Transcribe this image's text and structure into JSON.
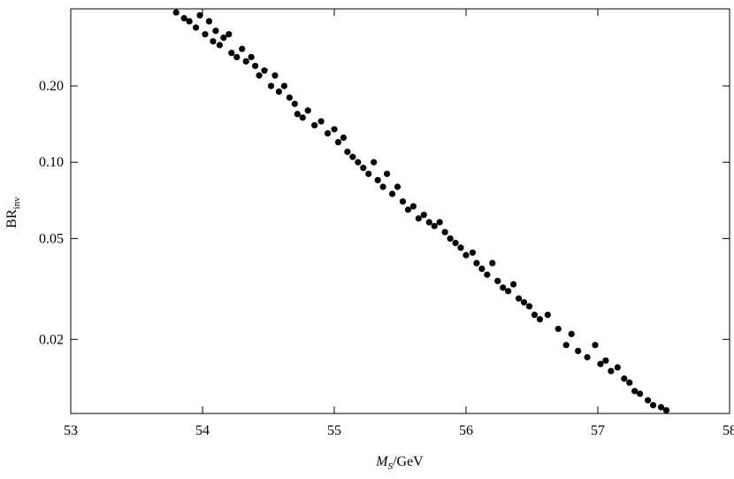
{
  "chart_data": {
    "type": "scatter",
    "yscale": "log",
    "color": "#000000",
    "xlabel": "M",
    "xlabel_sub": "S",
    "xlabel_unit": "/GeV",
    "ylabel": "BR",
    "ylabel_sub": "inv",
    "xlim": [
      53,
      58
    ],
    "xticks": [
      53,
      54,
      55,
      56,
      57,
      58
    ],
    "ylim": [
      0.0102,
      0.403
    ],
    "yticks": [
      {
        "value": 0.2,
        "label": "0.20"
      },
      {
        "value": 0.1,
        "label": "0.10"
      },
      0.05,
      0.02
    ],
    "x": [
      53.8,
      53.86,
      53.9,
      53.95,
      53.98,
      54.02,
      54.05,
      54.08,
      54.1,
      54.13,
      54.16,
      54.2,
      54.22,
      54.26,
      54.3,
      54.33,
      54.37,
      54.4,
      54.43,
      54.47,
      54.52,
      54.55,
      54.58,
      54.62,
      54.66,
      54.7,
      54.72,
      54.76,
      54.8,
      54.85,
      54.9,
      54.95,
      55.0,
      55.03,
      55.07,
      55.1,
      55.14,
      55.18,
      55.22,
      55.26,
      55.3,
      55.33,
      55.37,
      55.4,
      55.44,
      55.48,
      55.52,
      55.56,
      55.6,
      55.64,
      55.68,
      55.72,
      55.76,
      55.8,
      55.84,
      55.88,
      55.92,
      55.96,
      56.0,
      56.05,
      56.08,
      56.12,
      56.16,
      56.2,
      56.24,
      56.28,
      56.32,
      56.36,
      56.4,
      56.44,
      56.48,
      56.52,
      56.56,
      56.62,
      56.7,
      56.76,
      56.8,
      56.85,
      56.92,
      56.98,
      57.02,
      57.06,
      57.1,
      57.15,
      57.2,
      57.24,
      57.28,
      57.32,
      57.38,
      57.42,
      57.48,
      57.52
    ],
    "values": [
      0.39,
      0.37,
      0.36,
      0.34,
      0.38,
      0.32,
      0.36,
      0.3,
      0.33,
      0.29,
      0.31,
      0.32,
      0.27,
      0.26,
      0.28,
      0.25,
      0.26,
      0.24,
      0.22,
      0.23,
      0.2,
      0.22,
      0.19,
      0.2,
      0.18,
      0.17,
      0.155,
      0.15,
      0.16,
      0.14,
      0.145,
      0.13,
      0.135,
      0.12,
      0.125,
      0.11,
      0.105,
      0.1,
      0.095,
      0.09,
      0.1,
      0.085,
      0.08,
      0.09,
      0.075,
      0.08,
      0.07,
      0.065,
      0.067,
      0.06,
      0.062,
      0.058,
      0.056,
      0.058,
      0.053,
      0.05,
      0.048,
      0.046,
      0.043,
      0.044,
      0.04,
      0.038,
      0.036,
      0.04,
      0.034,
      0.032,
      0.031,
      0.033,
      0.029,
      0.028,
      0.027,
      0.025,
      0.024,
      0.025,
      0.022,
      0.019,
      0.021,
      0.018,
      0.017,
      0.019,
      0.016,
      0.0165,
      0.015,
      0.0155,
      0.014,
      0.0135,
      0.0125,
      0.0122,
      0.0115,
      0.011,
      0.0108,
      0.0105
    ]
  }
}
